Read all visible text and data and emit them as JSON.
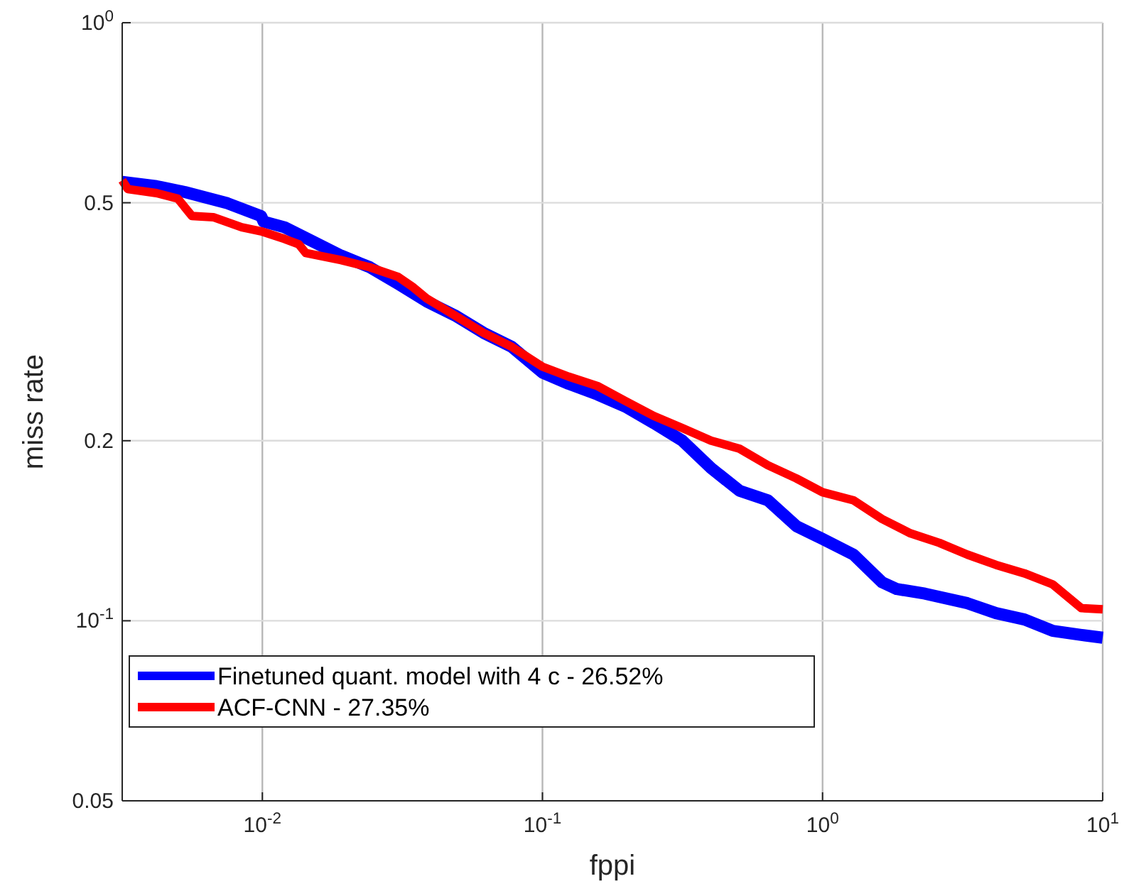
{
  "chart_data": {
    "type": "line",
    "xlabel": "fppi",
    "ylabel": "miss rate",
    "log": "xy",
    "grid": true,
    "legend": "bottom left",
    "line_style": "solid",
    "marker": "none",
    "xlim": [
      0.00316,
      10
    ],
    "ylim": [
      0.05,
      1
    ],
    "xticks": [
      {
        "value": 0.01,
        "label": "10$^{-2}$"
      },
      {
        "value": 0.1,
        "label": "10$^{-1}$"
      },
      {
        "value": 1,
        "label": "10$^{0}$"
      },
      {
        "value": 10,
        "label": "10$^{1}$"
      }
    ],
    "yticks": [
      0.05,
      {
        "value": 0.1,
        "label": "10$^{-1}$"
      },
      0.2,
      0.5,
      {
        "value": 1,
        "label": "10$^{0}$"
      }
    ],
    "series": [
      {
        "name": "Finetuned quant. model with 4 c - 26.52%",
        "color": "#0000ff",
        "x": [
          0.00316,
          0.00419,
          0.00529,
          0.00751,
          0.0099,
          0.0101,
          0.012,
          0.0151,
          0.0191,
          0.0242,
          0.0305,
          0.0386,
          0.0487,
          0.0616,
          0.0778,
          0.1,
          0.124,
          0.157,
          0.198,
          0.25,
          0.316,
          0.4,
          0.505,
          0.638,
          0.806,
          1,
          1.29,
          1.63,
          1.84,
          2.32,
          3.29,
          4.16,
          5.26,
          6.64,
          8.39,
          10
        ],
        "values": [
          0.542,
          0.533,
          0.521,
          0.499,
          0.475,
          0.465,
          0.455,
          0.431,
          0.408,
          0.39,
          0.366,
          0.342,
          0.324,
          0.303,
          0.287,
          0.26,
          0.249,
          0.239,
          0.228,
          0.214,
          0.2,
          0.18,
          0.165,
          0.159,
          0.144,
          0.137,
          0.129,
          0.116,
          0.113,
          0.111,
          0.107,
          0.103,
          0.1005,
          0.0962,
          0.0947,
          0.0937
        ]
      },
      {
        "name": "ACF-CNN - 27.35%",
        "color": "#ff0000",
        "x": [
          0.00316,
          0.00331,
          0.00419,
          0.00499,
          0.00561,
          0.00668,
          0.00844,
          0.0099,
          0.012,
          0.0135,
          0.0143,
          0.0191,
          0.0242,
          0.0305,
          0.0343,
          0.0386,
          0.0487,
          0.0616,
          0.0778,
          0.1,
          0.124,
          0.157,
          0.198,
          0.25,
          0.316,
          0.4,
          0.505,
          0.638,
          0.806,
          1,
          1.29,
          1.63,
          2.06,
          2.61,
          3.29,
          4.16,
          5.26,
          6.64,
          8.39,
          10
        ],
        "values": [
          0.545,
          0.527,
          0.519,
          0.508,
          0.475,
          0.473,
          0.455,
          0.448,
          0.435,
          0.426,
          0.412,
          0.401,
          0.39,
          0.376,
          0.362,
          0.346,
          0.324,
          0.303,
          0.287,
          0.266,
          0.256,
          0.247,
          0.233,
          0.22,
          0.21,
          0.2,
          0.194,
          0.182,
          0.173,
          0.164,
          0.159,
          0.148,
          0.14,
          0.135,
          0.129,
          0.124,
          0.12,
          0.115,
          0.105,
          0.1045
        ]
      }
    ]
  }
}
